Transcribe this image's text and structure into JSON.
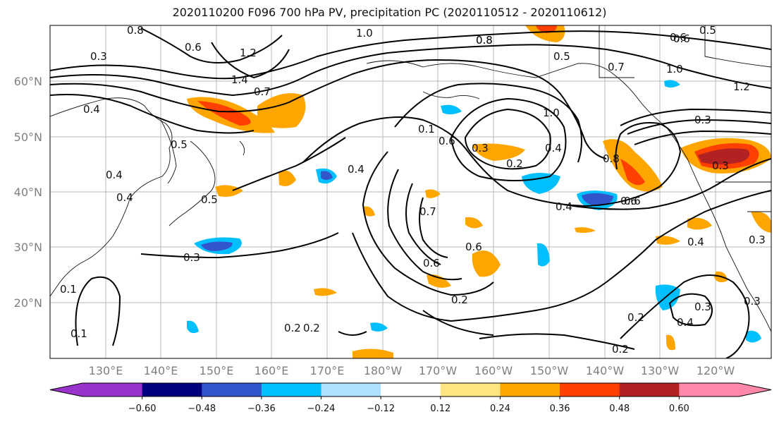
{
  "title": "2020110200 F096 700 hPa PV, precipitation PC (2020110512 - 2020110612)",
  "lat_labels": [
    "60°N",
    "50°N",
    "40°N",
    "30°N",
    "20°N"
  ],
  "lon_labels": [
    "130°E",
    "140°E",
    "150°E",
    "160°E",
    "170°E",
    "180°W",
    "170°W",
    "160°W",
    "150°W",
    "140°W",
    "130°W",
    "120°W"
  ],
  "colorbar": {
    "ticks": [
      "−0.60",
      "−0.48",
      "−0.36",
      "−0.24",
      "−0.12",
      "0.12",
      "0.24",
      "0.36",
      "0.48",
      "0.60"
    ],
    "colors": [
      "#9933cc",
      "#000080",
      "#3355cc",
      "#00bfff",
      "#b0e0ff",
      "#ffffff",
      "#ffe680",
      "#ffa500",
      "#ff4000",
      "#b22222",
      "#ff88aa"
    ]
  },
  "contour_labels": [
    "1.0",
    "0.8",
    "0.6",
    "1.2",
    "1.4",
    "0.7",
    "0.4",
    "0.5",
    "0.3",
    "0.4",
    "0.5",
    "0.3",
    "0.1",
    "0.6",
    "0.4",
    "0.8",
    "0.5",
    "0.3",
    "1.0",
    "0.2",
    "0.4",
    "0.4",
    "0.7",
    "0.6",
    "0.6",
    "0.6",
    "0.2",
    "0.2",
    "0.2",
    "0.1",
    "0.1",
    "0.4",
    "0.6",
    "0.3",
    "0.8",
    "0.8",
    "0.5",
    "0.7",
    "0.6",
    "0.6",
    "1.0",
    "1.2",
    "0.3",
    "0.3",
    "0.4",
    "0.4",
    "0.3",
    "0.2",
    "0.2",
    "0.3"
  ]
}
